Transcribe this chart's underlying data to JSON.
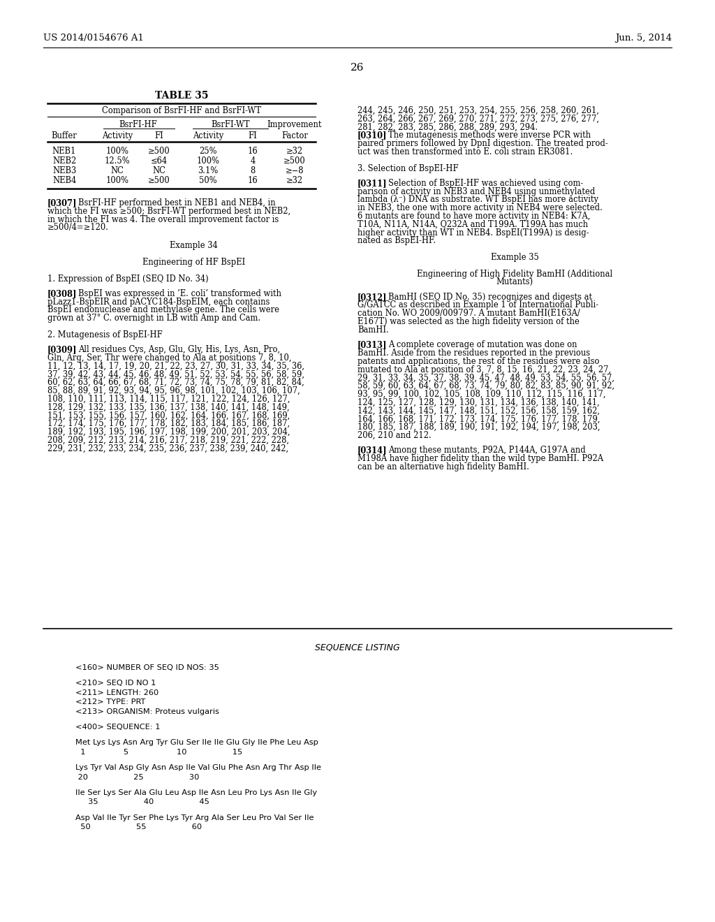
{
  "background_color": "#ffffff",
  "header_left": "US 2014/0154676 A1",
  "header_right": "Jun. 5, 2014",
  "page_number": "26",
  "table_title": "TABLE 35",
  "table_subtitle": "Comparison of BsrFI-HF and BsrFI-WT",
  "table_data": [
    [
      "NEB1",
      "100%",
      "≥500",
      "25%",
      "16",
      "≥32"
    ],
    [
      "NEB2",
      "12.5%",
      "≤64",
      "100%",
      "4",
      "≥500"
    ],
    [
      "NEB3",
      "NC",
      "NC",
      "3.1%",
      "8",
      "≥−8"
    ],
    [
      "NEB4",
      "100%",
      "≥500",
      "50%",
      "16",
      "≥32"
    ]
  ],
  "seq_lines": [
    "<160> NUMBER OF SEQ ID NOS: 35",
    "",
    "<210> SEQ ID NO 1",
    "<211> LENGTH: 260",
    "<212> TYPE: PRT",
    "<213> ORGANISM: Proteus vulgaris",
    "",
    "<400> SEQUENCE: 1",
    "",
    "Met Lys Lys Asn Arg Tyr Glu Ser Ile Ile Glu Gly Ile Phe Leu Asp",
    "  1               5                   10                  15",
    "",
    "Lys Tyr Val Asp Gly Asn Asp Ile Val Glu Phe Asn Arg Thr Asp Ile",
    " 20                  25                  30",
    "",
    "Ile Ser Lys Ser Ala Glu Leu Asp Ile Asn Leu Pro Lys Asn Ile Gly",
    "     35                  40                  45",
    "",
    "Asp Val Ile Tyr Ser Phe Lys Tyr Arg Ala Ser Leu Pro Val Ser Ile",
    "  50                  55                  60"
  ]
}
